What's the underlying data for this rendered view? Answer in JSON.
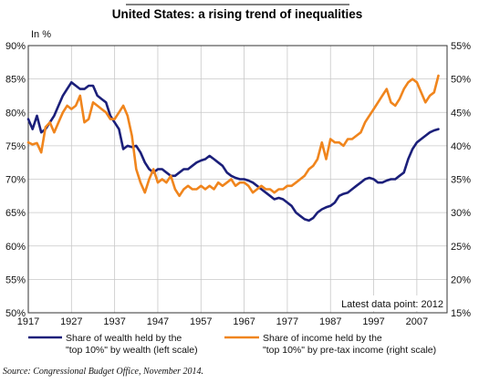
{
  "chart_data": {
    "type": "line",
    "title": "United States: a rising trend of inequalities",
    "left_axis": {
      "unit_label": "In %",
      "ylim": [
        50,
        90
      ],
      "ticks": [
        90,
        85,
        80,
        75,
        70,
        65,
        60,
        55,
        50
      ],
      "tick_labels": [
        "90%",
        "85%",
        "80%",
        "75%",
        "70%",
        "65%",
        "60%",
        "55%",
        "50%"
      ]
    },
    "right_axis": {
      "ylim": [
        15,
        55
      ],
      "ticks": [
        55,
        50,
        45,
        40,
        35,
        30,
        25,
        20,
        15
      ],
      "tick_labels": [
        "55%",
        "50%",
        "45%",
        "40%",
        "35%",
        "30%",
        "25%",
        "20%",
        "15%"
      ]
    },
    "x_axis": {
      "xlim": [
        1917,
        2014
      ],
      "ticks": [
        1917,
        1927,
        1937,
        1947,
        1957,
        1967,
        1977,
        1987,
        1997,
        2007
      ],
      "tick_labels": [
        "1917",
        "1927",
        "1937",
        "1947",
        "1957",
        "1967",
        "1977",
        "1987",
        "1997",
        "2007"
      ]
    },
    "grid": true,
    "annotation": "Latest data point: 2012",
    "series": [
      {
        "name": "Share of wealth held by the \"top 10%\" by wealth (left scale)",
        "legend_lines": [
          "Share of wealth held by the",
          "\"top 10%\" by wealth (left scale)"
        ],
        "axis": "left",
        "color": "#1b1f7a",
        "x": [
          1917,
          1918,
          1919,
          1920,
          1921,
          1922,
          1923,
          1924,
          1925,
          1926,
          1927,
          1928,
          1929,
          1930,
          1931,
          1932,
          1933,
          1934,
          1935,
          1936,
          1937,
          1938,
          1939,
          1940,
          1941,
          1942,
          1943,
          1944,
          1945,
          1946,
          1947,
          1948,
          1949,
          1950,
          1951,
          1952,
          1953,
          1954,
          1955,
          1956,
          1957,
          1958,
          1959,
          1960,
          1961,
          1962,
          1963,
          1964,
          1965,
          1966,
          1967,
          1968,
          1969,
          1970,
          1971,
          1972,
          1973,
          1974,
          1975,
          1976,
          1977,
          1978,
          1979,
          1980,
          1981,
          1982,
          1983,
          1984,
          1985,
          1986,
          1987,
          1988,
          1989,
          1990,
          1991,
          1992,
          1993,
          1994,
          1995,
          1996,
          1997,
          1998,
          1999,
          2000,
          2001,
          2002,
          2003,
          2004,
          2005,
          2006,
          2007,
          2008,
          2009,
          2010,
          2011,
          2012
        ],
        "values": [
          79.0,
          77.5,
          79.5,
          77.0,
          77.5,
          78.5,
          79.5,
          81.0,
          82.5,
          83.5,
          84.5,
          84.0,
          83.5,
          83.5,
          84.0,
          84.0,
          82.5,
          82.0,
          81.5,
          79.5,
          78.5,
          77.5,
          74.5,
          75.0,
          74.8,
          75.0,
          74.0,
          72.5,
          71.5,
          71.0,
          71.5,
          71.5,
          71.0,
          70.5,
          70.5,
          71.0,
          71.5,
          71.5,
          72.0,
          72.5,
          72.8,
          73.0,
          73.5,
          73.0,
          72.5,
          72.0,
          71.0,
          70.5,
          70.2,
          70.0,
          70.0,
          69.8,
          69.5,
          69.0,
          68.5,
          68.0,
          67.5,
          67.0,
          67.2,
          67.0,
          66.5,
          66.0,
          65.0,
          64.5,
          64.0,
          63.8,
          64.2,
          65.0,
          65.5,
          65.8,
          66.0,
          66.5,
          67.5,
          67.8,
          68.0,
          68.5,
          69.0,
          69.5,
          70.0,
          70.2,
          70.0,
          69.5,
          69.5,
          69.8,
          70.0,
          70.0,
          70.5,
          71.0,
          73.0,
          74.5,
          75.5,
          76.0,
          76.5,
          77.0,
          77.3,
          77.5
        ]
      },
      {
        "name": "Share of income held by the \"top 10%\" by pre-tax income (right scale)",
        "legend_lines": [
          "Share of income held by the",
          "\"top 10%\" by pre-tax income (right scale)"
        ],
        "axis": "right",
        "color": "#f0851d",
        "x": [
          1917,
          1918,
          1919,
          1920,
          1921,
          1922,
          1923,
          1924,
          1925,
          1926,
          1927,
          1928,
          1929,
          1930,
          1931,
          1932,
          1933,
          1934,
          1935,
          1936,
          1937,
          1938,
          1939,
          1940,
          1941,
          1942,
          1943,
          1944,
          1945,
          1946,
          1947,
          1948,
          1949,
          1950,
          1951,
          1952,
          1953,
          1954,
          1955,
          1956,
          1957,
          1958,
          1959,
          1960,
          1961,
          1962,
          1963,
          1964,
          1965,
          1966,
          1967,
          1968,
          1969,
          1970,
          1971,
          1972,
          1973,
          1974,
          1975,
          1976,
          1977,
          1978,
          1979,
          1980,
          1981,
          1982,
          1983,
          1984,
          1985,
          1986,
          1987,
          1988,
          1989,
          1990,
          1991,
          1992,
          1993,
          1994,
          1995,
          1996,
          1997,
          1998,
          1999,
          2000,
          2001,
          2002,
          2003,
          2004,
          2005,
          2006,
          2007,
          2008,
          2009,
          2010,
          2011,
          2012
        ],
        "values": [
          40.5,
          40.2,
          40.4,
          39.0,
          42.8,
          43.5,
          42.0,
          43.5,
          45.0,
          46.0,
          45.5,
          46.0,
          47.5,
          43.5,
          44.0,
          46.5,
          46.0,
          45.5,
          45.0,
          44.0,
          44.0,
          45.0,
          46.0,
          44.5,
          41.5,
          36.5,
          34.5,
          33.0,
          35.0,
          36.5,
          34.5,
          35.0,
          34.5,
          35.5,
          33.5,
          32.5,
          33.5,
          34.0,
          33.5,
          33.5,
          34.0,
          33.5,
          34.0,
          33.5,
          34.5,
          34.0,
          34.5,
          35.0,
          34.0,
          34.5,
          34.5,
          34.0,
          33.0,
          33.5,
          34.0,
          33.5,
          33.5,
          33.0,
          33.5,
          33.5,
          34.0,
          34.0,
          34.5,
          35.0,
          35.5,
          36.5,
          37.0,
          38.0,
          40.5,
          38.0,
          41.0,
          40.5,
          40.5,
          40.0,
          41.0,
          41.0,
          41.5,
          42.0,
          43.5,
          44.5,
          45.5,
          46.5,
          47.5,
          48.5,
          46.5,
          46.0,
          47.0,
          48.5,
          49.5,
          50.0,
          49.5,
          48.0,
          46.5,
          47.5,
          48.0,
          50.5
        ]
      }
    ]
  },
  "source": "Source: Congressional Budget Office, November 2014."
}
